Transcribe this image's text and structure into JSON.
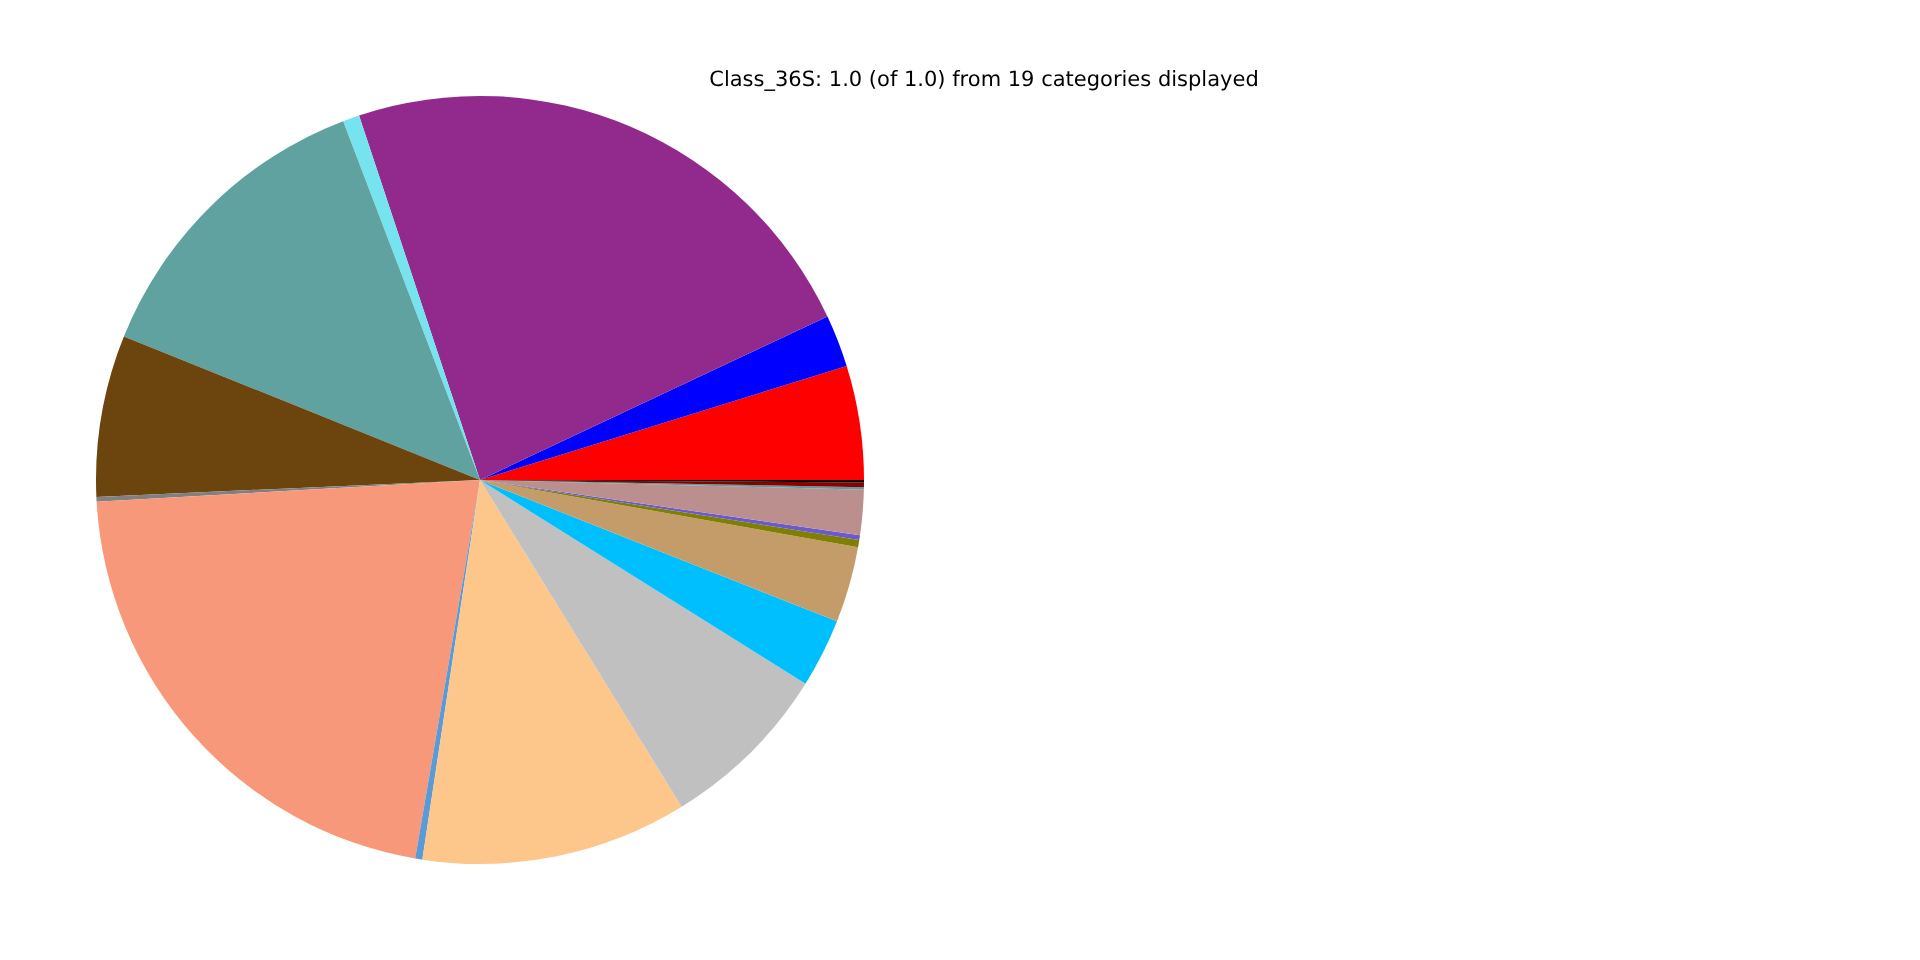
{
  "chart_data": {
    "type": "pie",
    "title": "Class_36S: 1.0 (of 1.0) from 19 categories displayed",
    "categories": [
      null,
      null,
      null,
      null,
      null,
      null,
      null,
      null,
      null,
      null,
      null,
      null,
      null,
      null,
      null,
      null,
      null,
      null,
      null
    ],
    "values": [
      4.8,
      2.2,
      23.1,
      0.7,
      13.1,
      6.8,
      0.2,
      21.4,
      0.3,
      11.2,
      7.3,
      2.9,
      3.2,
      0.3,
      0.2,
      1.9,
      0.1,
      0.2,
      0.1
    ],
    "colors": [
      "#ff0000",
      "#0000ff",
      "#912a8c",
      "#76e4ee",
      "#5fa29f",
      "#6b440e",
      "#808080",
      "#f8987a",
      "#5b9bd5",
      "#fdc78c",
      "#c0c0c0",
      "#00bfff",
      "#c49c6a",
      "#808000",
      "#6a5acd",
      "#bc8f8f",
      "#5f9ea0",
      "#8b0000",
      "#000000"
    ]
  }
}
